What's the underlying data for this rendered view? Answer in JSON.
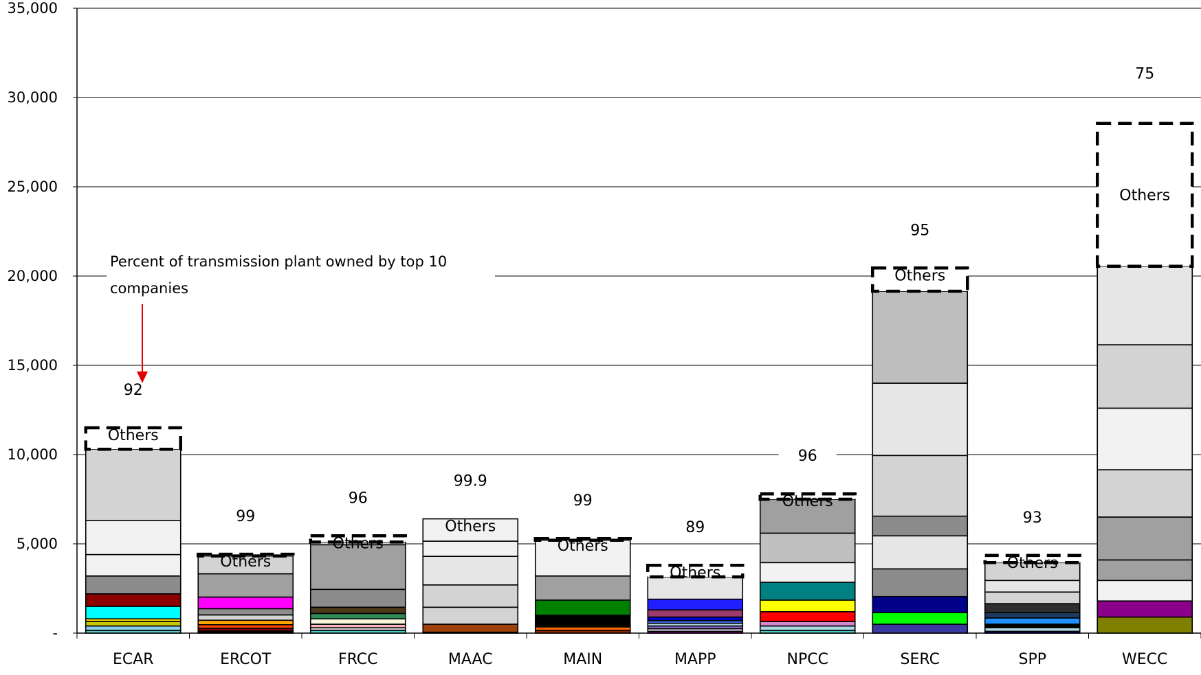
{
  "chart_data": {
    "type": "bar",
    "stacked": true,
    "title": "",
    "xlabel": "",
    "ylabel": "",
    "ylim": [
      0,
      35000
    ],
    "yticks": [
      0,
      5000,
      10000,
      15000,
      20000,
      25000,
      30000,
      35000
    ],
    "ytick_labels": [
      "-",
      "5,000",
      "10,000",
      "15,000",
      "20,000",
      "25,000",
      "30,000",
      "35,000"
    ],
    "grid": true,
    "legend": "none",
    "categories": [
      "ECAR",
      "ERCOT",
      "FRCC",
      "MAAC",
      "MAIN",
      "MAPP",
      "NPCC",
      "SERC",
      "SPP",
      "WECC"
    ],
    "bars": [
      {
        "category": "ECAR",
        "percent_top10": "92",
        "segments": [
          {
            "value": 150,
            "color": "#5ec8c8"
          },
          {
            "value": 250,
            "color": "#87ceeb"
          },
          {
            "value": 250,
            "color": "#c8c800"
          },
          {
            "value": 150,
            "color": "#ffd700"
          },
          {
            "value": 700,
            "color": "#00ffff"
          },
          {
            "value": 700,
            "color": "#8b0000"
          },
          {
            "value": 1000,
            "color": "#8c8c8c"
          },
          {
            "value": 1200,
            "color": "#f2f2f2"
          },
          {
            "value": 1900,
            "color": "#f2f2f2"
          },
          {
            "value": 4000,
            "color": "#d3d3d3"
          }
        ],
        "others": 1200
      },
      {
        "category": "ERCOT",
        "percent_top10": "99",
        "segments": [
          {
            "value": 120,
            "color": "#000000"
          },
          {
            "value": 150,
            "color": "#8b0000"
          },
          {
            "value": 200,
            "color": "#ff4500"
          },
          {
            "value": 250,
            "color": "#ffa500"
          },
          {
            "value": 300,
            "color": "#d3d3d3"
          },
          {
            "value": 350,
            "color": "#8c8c8c"
          },
          {
            "value": 650,
            "color": "#ff00ff"
          },
          {
            "value": 1300,
            "color": "#a0a0a0"
          },
          {
            "value": 1000,
            "color": "#d3d3d3"
          }
        ],
        "others": 100
      },
      {
        "category": "FRCC",
        "percent_top10": "96",
        "segments": [
          {
            "value": 150,
            "color": "#48d1cc"
          },
          {
            "value": 150,
            "color": "#d3d3d3"
          },
          {
            "value": 200,
            "color": "#ffb6c1"
          },
          {
            "value": 300,
            "color": "#f5f5dc"
          },
          {
            "value": 300,
            "color": "#2e8b57"
          },
          {
            "value": 350,
            "color": "#4d3a1a"
          },
          {
            "value": 1000,
            "color": "#8c8c8c"
          },
          {
            "value": 2500,
            "color": "#a0a0a0"
          },
          {
            "value": 150,
            "color": "#d3d3d3"
          }
        ],
        "others": 350
      },
      {
        "category": "MAAC",
        "percent_top10": "99.9",
        "segments": [
          {
            "value": 50,
            "color": "#f2f2f2"
          },
          {
            "value": 450,
            "color": "#a0400a"
          },
          {
            "value": 950,
            "color": "#d3d3d3"
          },
          {
            "value": 1250,
            "color": "#d3d3d3"
          },
          {
            "value": 1600,
            "color": "#e6e6e6"
          },
          {
            "value": 850,
            "color": "#f2f2f2"
          },
          {
            "value": 1250,
            "color": "#f2f2f2"
          }
        ],
        "others": 0
      },
      {
        "category": "MAIN",
        "percent_top10": "99",
        "segments": [
          {
            "value": 150,
            "color": "#8b2500"
          },
          {
            "value": 200,
            "color": "#ff6600"
          },
          {
            "value": 650,
            "color": "#000000"
          },
          {
            "value": 850,
            "color": "#008000"
          },
          {
            "value": 1350,
            "color": "#a0a0a0"
          },
          {
            "value": 2000,
            "color": "#f2f2f2"
          }
        ],
        "others": 100
      },
      {
        "category": "MAPP",
        "percent_top10": "89",
        "segments": [
          {
            "value": 100,
            "color": "#800080"
          },
          {
            "value": 150,
            "color": "#d3d3d3"
          },
          {
            "value": 150,
            "color": "#9370db"
          },
          {
            "value": 150,
            "color": "#add8e6"
          },
          {
            "value": 150,
            "color": "#4169e1"
          },
          {
            "value": 200,
            "color": "#0000cd"
          },
          {
            "value": 400,
            "color": "#9b3a6b"
          },
          {
            "value": 600,
            "color": "#1f1fff"
          },
          {
            "value": 1250,
            "color": "#e6e6e6"
          }
        ],
        "others": 650
      },
      {
        "category": "NPCC",
        "percent_top10": "96",
        "segments": [
          {
            "value": 150,
            "color": "#48d1cc"
          },
          {
            "value": 250,
            "color": "#add8e6"
          },
          {
            "value": 250,
            "color": "#d08bd0"
          },
          {
            "value": 550,
            "color": "#ff0000"
          },
          {
            "value": 650,
            "color": "#ffff00"
          },
          {
            "value": 1000,
            "color": "#008080"
          },
          {
            "value": 1100,
            "color": "#f2f2f2"
          },
          {
            "value": 1650,
            "color": "#c0c0c0"
          },
          {
            "value": 1900,
            "color": "#a0a0a0"
          }
        ],
        "others": 300
      },
      {
        "category": "SERC",
        "percent_top10": "95",
        "segments": [
          {
            "value": 500,
            "color": "#3a3aa0"
          },
          {
            "value": 650,
            "color": "#00ff00"
          },
          {
            "value": 900,
            "color": "#00008b"
          },
          {
            "value": 1550,
            "color": "#8c8c8c"
          },
          {
            "value": 1850,
            "color": "#e6e6e6"
          },
          {
            "value": 1100,
            "color": "#8c8c8c"
          },
          {
            "value": 3400,
            "color": "#d3d3d3"
          },
          {
            "value": 4050,
            "color": "#e6e6e6"
          },
          {
            "value": 5150,
            "color": "#bebebe"
          }
        ],
        "others": 1300
      },
      {
        "category": "SPP",
        "percent_top10": "93",
        "segments": [
          {
            "value": 100,
            "color": "#000080"
          },
          {
            "value": 200,
            "color": "#add8e6"
          },
          {
            "value": 200,
            "color": "#000000"
          },
          {
            "value": 350,
            "color": "#1e90ff"
          },
          {
            "value": 300,
            "color": "#1f3a5f"
          },
          {
            "value": 500,
            "color": "#2f2f2f"
          },
          {
            "value": 650,
            "color": "#d3d3d3"
          },
          {
            "value": 650,
            "color": "#e6e6e6"
          },
          {
            "value": 1000,
            "color": "#d3d3d3"
          }
        ],
        "others": 400
      },
      {
        "category": "WECC",
        "percent_top10": "75",
        "segments": [
          {
            "value": 900,
            "color": "#808000"
          },
          {
            "value": 900,
            "color": "#8b008b"
          },
          {
            "value": 1150,
            "color": "#f2f2f2"
          },
          {
            "value": 1150,
            "color": "#a0a0a0"
          },
          {
            "value": 2400,
            "color": "#a0a0a0"
          },
          {
            "value": 2650,
            "color": "#d3d3d3"
          },
          {
            "value": 3450,
            "color": "#f2f2f2"
          },
          {
            "value": 3550,
            "color": "#d3d3d3"
          },
          {
            "value": 4400,
            "color": "#e6e6e6"
          }
        ],
        "others": 8000
      }
    ],
    "others_label": "Others",
    "annotation": {
      "line1": "Percent of transmission plant owned by top 10",
      "line2": "companies",
      "arrow_color": "#e00000",
      "target_category": "ECAR"
    }
  }
}
